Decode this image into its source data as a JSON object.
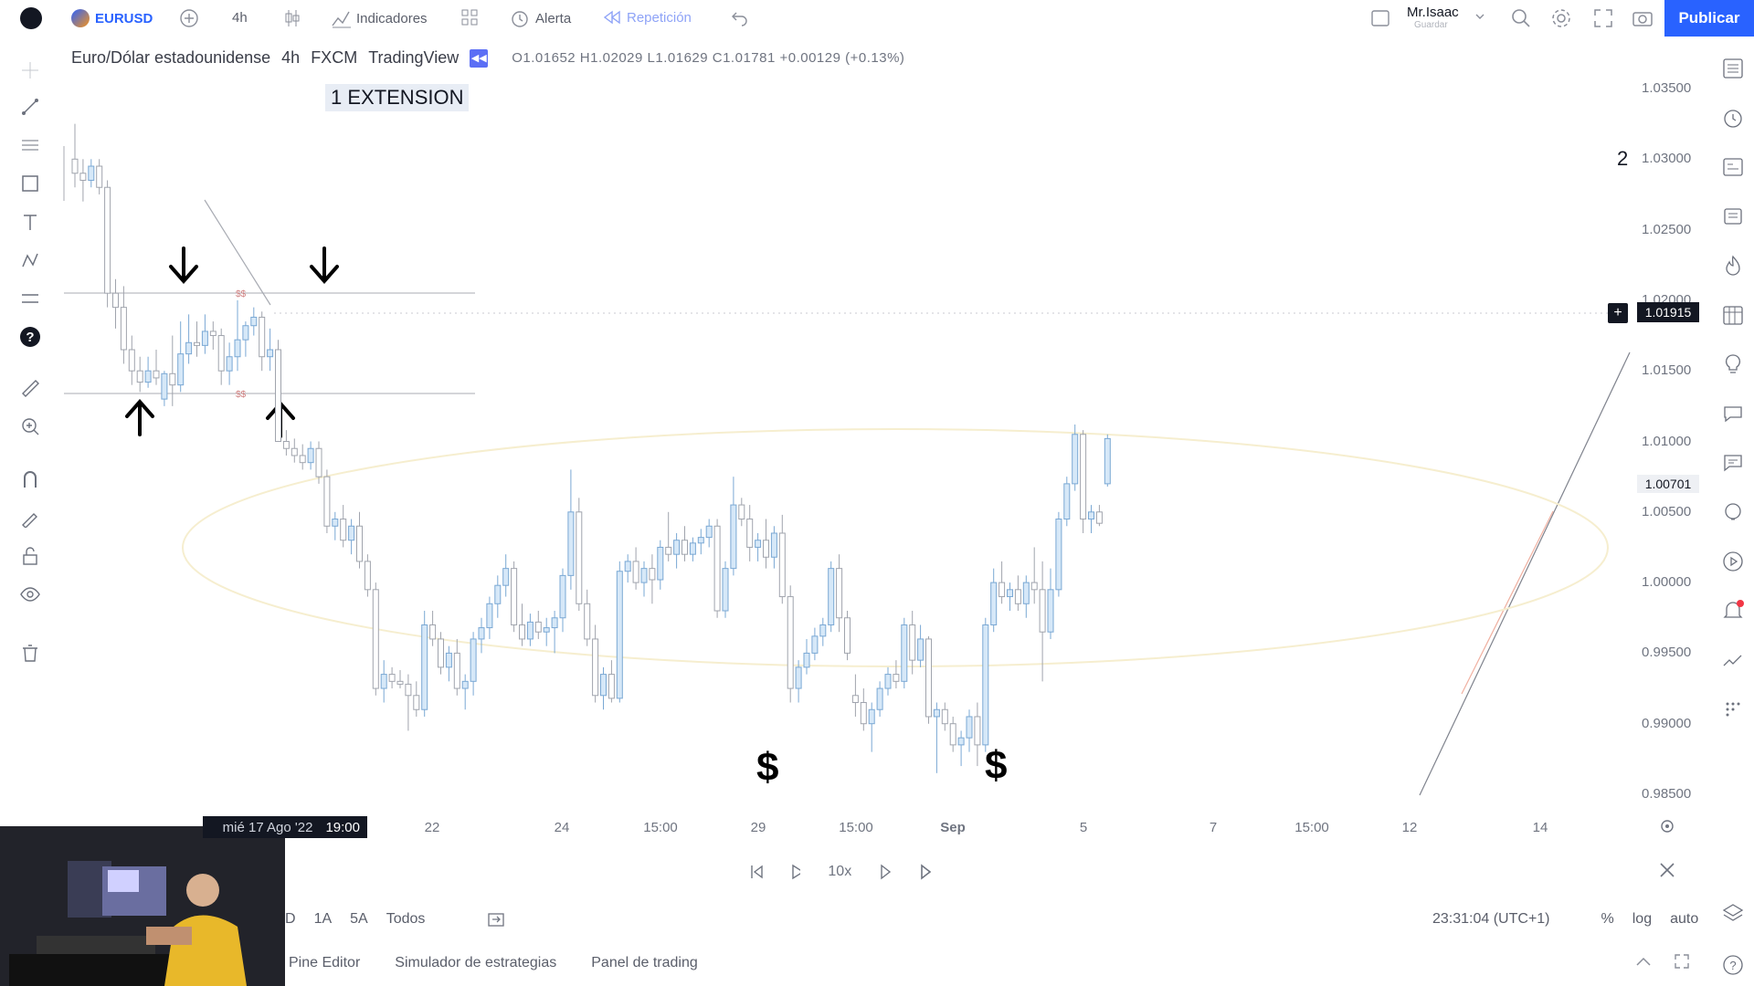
{
  "topbar": {
    "symbol": "EURUSD",
    "interval": "4h",
    "indicators_label": "Indicadores",
    "alert_label": "Alerta",
    "replay_label": "Repetición",
    "user_name": "Mr.Isaac",
    "user_sub": "Guardar",
    "publish_label": "Publicar"
  },
  "legend": {
    "title": "Euro/Dólar estadounidense",
    "interval": "4h",
    "exchange": "FXCM",
    "source": "TradingView",
    "ohlc": "O1.01652 H1.02029 L1.01629 C1.01781 +0.00129 (+0.13%)"
  },
  "annotation": {
    "extension_label": "1 EXTENSION",
    "marker_2": "2",
    "dollar_1": "$",
    "dollar_2": "$",
    "ss_top": "$$",
    "ss_bottom": "$$"
  },
  "chart_data": {
    "type": "candlestick",
    "price_ticks": [
      "1.03500",
      "1.03000",
      "1.02500",
      "1.02000",
      "1.01500",
      "1.01000",
      "1.00500",
      "1.00000",
      "0.99500",
      "0.99000",
      "0.98500"
    ],
    "ylim": [
      0.985,
      1.035
    ],
    "current_price": "1.01915",
    "marked_price": "1.00701",
    "time_ticks": [
      "22",
      "24",
      "15:00",
      "29",
      "15:00",
      "Sep",
      "5",
      "7",
      "15:00",
      "12",
      "14"
    ],
    "crosshair_date": "mié 17 Ago '22",
    "crosshair_time": "19:00",
    "candles": [
      {
        "o": 1.03,
        "h": 1.0325,
        "l": 1.028,
        "c": 1.029
      },
      {
        "o": 1.029,
        "h": 1.03,
        "l": 1.027,
        "c": 1.0285
      },
      {
        "o": 1.0285,
        "h": 1.03,
        "l": 1.028,
        "c": 1.0295
      },
      {
        "o": 1.0295,
        "h": 1.03,
        "l": 1.0275,
        "c": 1.028
      },
      {
        "o": 1.028,
        "h": 1.0285,
        "l": 1.0195,
        "c": 1.0205
      },
      {
        "o": 1.0205,
        "h": 1.0215,
        "l": 1.018,
        "c": 1.0195
      },
      {
        "o": 1.0195,
        "h": 1.021,
        "l": 1.0155,
        "c": 1.0165
      },
      {
        "o": 1.0165,
        "h": 1.0175,
        "l": 1.014,
        "c": 1.015
      },
      {
        "o": 1.015,
        "h": 1.016,
        "l": 1.0135,
        "c": 1.0142
      },
      {
        "o": 1.0142,
        "h": 1.016,
        "l": 1.0138,
        "c": 1.015
      },
      {
        "o": 1.015,
        "h": 1.0165,
        "l": 1.014,
        "c": 1.0145
      },
      {
        "o": 1.013,
        "h": 1.015,
        "l": 1.0125,
        "c": 1.0148
      },
      {
        "o": 1.0148,
        "h": 1.0175,
        "l": 1.0125,
        "c": 1.014
      },
      {
        "o": 1.014,
        "h": 1.0185,
        "l": 1.0135,
        "c": 1.0162
      },
      {
        "o": 1.0162,
        "h": 1.019,
        "l": 1.0155,
        "c": 1.017
      },
      {
        "o": 1.017,
        "h": 1.0185,
        "l": 1.016,
        "c": 1.0168
      },
      {
        "o": 1.0168,
        "h": 1.019,
        "l": 1.0162,
        "c": 1.0178
      },
      {
        "o": 1.0178,
        "h": 1.0185,
        "l": 1.0165,
        "c": 1.0175
      },
      {
        "o": 1.0175,
        "h": 1.018,
        "l": 1.014,
        "c": 1.015
      },
      {
        "o": 1.015,
        "h": 1.017,
        "l": 1.014,
        "c": 1.016
      },
      {
        "o": 1.016,
        "h": 1.02,
        "l": 1.015,
        "c": 1.0172
      },
      {
        "o": 1.0172,
        "h": 1.0185,
        "l": 1.016,
        "c": 1.0182
      },
      {
        "o": 1.0182,
        "h": 1.0195,
        "l": 1.0175,
        "c": 1.0188
      },
      {
        "o": 1.0188,
        "h": 1.0192,
        "l": 1.015,
        "c": 1.016
      },
      {
        "o": 1.016,
        "h": 1.018,
        "l": 1.015,
        "c": 1.0165
      },
      {
        "o": 1.0165,
        "h": 1.0172,
        "l": 1.01,
        "c": 1.01
      },
      {
        "o": 1.01,
        "h": 1.0108,
        "l": 1.009,
        "c": 1.0095
      },
      {
        "o": 1.0095,
        "h": 1.0102,
        "l": 1.0085,
        "c": 1.009
      },
      {
        "o": 1.009,
        "h": 1.0098,
        "l": 1.008,
        "c": 1.0085
      },
      {
        "o": 1.0085,
        "h": 1.01,
        "l": 1.008,
        "c": 1.0095
      },
      {
        "o": 1.0095,
        "h": 1.01,
        "l": 1.007,
        "c": 1.0075
      },
      {
        "o": 1.0075,
        "h": 1.008,
        "l": 1.0035,
        "c": 1.004
      },
      {
        "o": 1.004,
        "h": 1.005,
        "l": 1.003,
        "c": 1.0045
      },
      {
        "o": 1.0045,
        "h": 1.0055,
        "l": 1.0025,
        "c": 1.003
      },
      {
        "o": 1.003,
        "h": 1.0045,
        "l": 1.002,
        "c": 1.004
      },
      {
        "o": 1.004,
        "h": 1.005,
        "l": 1.001,
        "c": 1.0015
      },
      {
        "o": 1.0015,
        "h": 1.002,
        "l": 0.999,
        "c": 0.9995
      },
      {
        "o": 0.9995,
        "h": 1.0,
        "l": 0.992,
        "c": 0.9925
      },
      {
        "o": 0.9925,
        "h": 0.9945,
        "l": 0.9915,
        "c": 0.9935
      },
      {
        "o": 0.9935,
        "h": 0.994,
        "l": 0.9925,
        "c": 0.993
      },
      {
        "o": 0.993,
        "h": 0.9938,
        "l": 0.9925,
        "c": 0.9928
      },
      {
        "o": 0.9928,
        "h": 0.9935,
        "l": 0.9895,
        "c": 0.992
      },
      {
        "o": 0.992,
        "h": 0.993,
        "l": 0.9905,
        "c": 0.991
      },
      {
        "o": 0.991,
        "h": 0.998,
        "l": 0.9905,
        "c": 0.997
      },
      {
        "o": 0.997,
        "h": 0.998,
        "l": 0.9955,
        "c": 0.996
      },
      {
        "o": 0.996,
        "h": 0.9965,
        "l": 0.9935,
        "c": 0.994
      },
      {
        "o": 0.994,
        "h": 0.9955,
        "l": 0.993,
        "c": 0.995
      },
      {
        "o": 0.995,
        "h": 0.996,
        "l": 0.992,
        "c": 0.9925
      },
      {
        "o": 0.9925,
        "h": 0.9935,
        "l": 0.991,
        "c": 0.993
      },
      {
        "o": 0.993,
        "h": 0.9965,
        "l": 0.992,
        "c": 0.996
      },
      {
        "o": 0.996,
        "h": 0.9975,
        "l": 0.995,
        "c": 0.9968
      },
      {
        "o": 0.9968,
        "h": 0.999,
        "l": 0.996,
        "c": 0.9985
      },
      {
        "o": 0.9985,
        "h": 1.0005,
        "l": 0.9975,
        "c": 0.9998
      },
      {
        "o": 0.9998,
        "h": 1.002,
        "l": 0.999,
        "c": 1.001
      },
      {
        "o": 1.001,
        "h": 1.0015,
        "l": 0.9965,
        "c": 0.997
      },
      {
        "o": 0.997,
        "h": 0.9985,
        "l": 0.9955,
        "c": 0.996
      },
      {
        "o": 0.996,
        "h": 0.9978,
        "l": 0.9955,
        "c": 0.9972
      },
      {
        "o": 0.9972,
        "h": 0.998,
        "l": 0.996,
        "c": 0.9965
      },
      {
        "o": 0.9965,
        "h": 0.9975,
        "l": 0.9955,
        "c": 0.9968
      },
      {
        "o": 0.9968,
        "h": 0.998,
        "l": 0.995,
        "c": 0.9975
      },
      {
        "o": 0.9975,
        "h": 1.001,
        "l": 0.9965,
        "c": 1.0005
      },
      {
        "o": 1.0005,
        "h": 1.008,
        "l": 0.9995,
        "c": 1.005
      },
      {
        "o": 1.005,
        "h": 1.006,
        "l": 0.998,
        "c": 0.9985
      },
      {
        "o": 0.9985,
        "h": 0.9995,
        "l": 0.9955,
        "c": 0.996
      },
      {
        "o": 0.996,
        "h": 0.997,
        "l": 0.9915,
        "c": 0.992
      },
      {
        "o": 0.992,
        "h": 0.994,
        "l": 0.991,
        "c": 0.9935
      },
      {
        "o": 0.9935,
        "h": 0.9945,
        "l": 0.9915,
        "c": 0.9918
      },
      {
        "o": 0.9918,
        "h": 1.0015,
        "l": 0.9915,
        "c": 1.0008
      },
      {
        "o": 1.0008,
        "h": 1.002,
        "l": 1.0,
        "c": 1.0015
      },
      {
        "o": 1.0015,
        "h": 1.0025,
        "l": 0.9995,
        "c": 1.0
      },
      {
        "o": 1.0,
        "h": 1.0015,
        "l": 0.999,
        "c": 1.001
      },
      {
        "o": 1.001,
        "h": 1.002,
        "l": 0.9985,
        "c": 1.0002
      },
      {
        "o": 1.0002,
        "h": 1.003,
        "l": 0.9995,
        "c": 1.0025
      },
      {
        "o": 1.0025,
        "h": 1.005,
        "l": 1.0015,
        "c": 1.002
      },
      {
        "o": 1.002,
        "h": 1.0035,
        "l": 1.001,
        "c": 1.003
      },
      {
        "o": 1.003,
        "h": 1.004,
        "l": 1.0015,
        "c": 1.002
      },
      {
        "o": 1.002,
        "h": 1.0032,
        "l": 1.0015,
        "c": 1.0028
      },
      {
        "o": 1.0028,
        "h": 1.0038,
        "l": 1.002,
        "c": 1.0032
      },
      {
        "o": 1.0032,
        "h": 1.0045,
        "l": 1.0025,
        "c": 1.004
      },
      {
        "o": 1.004,
        "h": 1.0045,
        "l": 0.9975,
        "c": 0.998
      },
      {
        "o": 0.998,
        "h": 1.0015,
        "l": 0.9975,
        "c": 1.001
      },
      {
        "o": 1.001,
        "h": 1.0075,
        "l": 1.0005,
        "c": 1.0055
      },
      {
        "o": 1.0055,
        "h": 1.006,
        "l": 1.004,
        "c": 1.0045
      },
      {
        "o": 1.0045,
        "h": 1.0055,
        "l": 1.0015,
        "c": 1.0025
      },
      {
        "o": 1.0025,
        "h": 1.0035,
        "l": 1.0015,
        "c": 1.003
      },
      {
        "o": 1.003,
        "h": 1.0045,
        "l": 1.001,
        "c": 1.0018
      },
      {
        "o": 1.0018,
        "h": 1.004,
        "l": 1.001,
        "c": 1.0035
      },
      {
        "o": 1.0035,
        "h": 1.0048,
        "l": 0.9985,
        "c": 0.999
      },
      {
        "o": 0.999,
        "h": 0.9998,
        "l": 0.9915,
        "c": 0.9925
      },
      {
        "o": 0.9925,
        "h": 0.9945,
        "l": 0.9915,
        "c": 0.994
      },
      {
        "o": 0.994,
        "h": 0.996,
        "l": 0.9935,
        "c": 0.995
      },
      {
        "o": 0.995,
        "h": 0.9968,
        "l": 0.9945,
        "c": 0.9962
      },
      {
        "o": 0.9962,
        "h": 0.9975,
        "l": 0.9955,
        "c": 0.997
      },
      {
        "o": 0.997,
        "h": 1.0015,
        "l": 0.9965,
        "c": 1.001
      },
      {
        "o": 1.001,
        "h": 1.002,
        "l": 0.9965,
        "c": 0.9975
      },
      {
        "o": 0.9975,
        "h": 0.998,
        "l": 0.9945,
        "c": 0.995
      },
      {
        "o": 0.992,
        "h": 0.9935,
        "l": 0.9905,
        "c": 0.9915
      },
      {
        "o": 0.9915,
        "h": 0.9925,
        "l": 0.9895,
        "c": 0.99
      },
      {
        "o": 0.99,
        "h": 0.9915,
        "l": 0.988,
        "c": 0.991
      },
      {
        "o": 0.991,
        "h": 0.993,
        "l": 0.9905,
        "c": 0.9925
      },
      {
        "o": 0.9925,
        "h": 0.994,
        "l": 0.992,
        "c": 0.9935
      },
      {
        "o": 0.9935,
        "h": 0.9945,
        "l": 0.9925,
        "c": 0.993
      },
      {
        "o": 0.993,
        "h": 0.9975,
        "l": 0.9925,
        "c": 0.997
      },
      {
        "o": 0.997,
        "h": 0.998,
        "l": 0.9935,
        "c": 0.9945
      },
      {
        "o": 0.9945,
        "h": 0.997,
        "l": 0.994,
        "c": 0.996
      },
      {
        "o": 0.996,
        "h": 0.9962,
        "l": 0.99,
        "c": 0.9905
      },
      {
        "o": 0.9905,
        "h": 0.9915,
        "l": 0.9865,
        "c": 0.991
      },
      {
        "o": 0.991,
        "h": 0.9915,
        "l": 0.9895,
        "c": 0.99
      },
      {
        "o": 0.99,
        "h": 0.9905,
        "l": 0.988,
        "c": 0.9885
      },
      {
        "o": 0.9885,
        "h": 0.9895,
        "l": 0.987,
        "c": 0.989
      },
      {
        "o": 0.989,
        "h": 0.991,
        "l": 0.988,
        "c": 0.9905
      },
      {
        "o": 0.9905,
        "h": 0.9915,
        "l": 0.987,
        "c": 0.9885
      },
      {
        "o": 0.9885,
        "h": 0.9975,
        "l": 0.988,
        "c": 0.997
      },
      {
        "o": 0.997,
        "h": 1.001,
        "l": 0.9965,
        "c": 1.0
      },
      {
        "o": 1.0,
        "h": 1.0015,
        "l": 0.9985,
        "c": 0.999
      },
      {
        "o": 0.999,
        "h": 1.0,
        "l": 0.998,
        "c": 0.9995
      },
      {
        "o": 0.9995,
        "h": 1.0005,
        "l": 0.998,
        "c": 0.9985
      },
      {
        "o": 0.9985,
        "h": 1.0005,
        "l": 0.9975,
        "c": 1.0
      },
      {
        "o": 1.0,
        "h": 1.0025,
        "l": 0.9985,
        "c": 0.9995
      },
      {
        "o": 0.9995,
        "h": 1.0015,
        "l": 0.993,
        "c": 0.9965
      },
      {
        "o": 0.9965,
        "h": 1.001,
        "l": 0.996,
        "c": 0.9995
      },
      {
        "o": 0.9995,
        "h": 1.005,
        "l": 0.999,
        "c": 1.0045
      },
      {
        "o": 1.0045,
        "h": 1.0075,
        "l": 1.004,
        "c": 1.007
      },
      {
        "o": 1.007,
        "h": 1.0112,
        "l": 1.0065,
        "c": 1.0105
      },
      {
        "o": 1.0105,
        "h": 1.0108,
        "l": 1.0035,
        "c": 1.0045
      },
      {
        "o": 1.0045,
        "h": 1.0055,
        "l": 1.0035,
        "c": 1.005
      },
      {
        "o": 1.005,
        "h": 1.0055,
        "l": 1.004,
        "c": 1.0042
      },
      {
        "o": 1.007,
        "h": 1.0105,
        "l": 1.0068,
        "c": 1.0102
      }
    ]
  },
  "replay": {
    "speed": "10x"
  },
  "bottom": {
    "ranges": [
      "D",
      "1A",
      "5A",
      "Todos"
    ],
    "clock": "23:31:04 (UTC+1)",
    "percent": "%",
    "log": "log",
    "auto": "auto",
    "tabs": [
      "Pine Editor",
      "Simulador de estrategias",
      "Panel de trading"
    ]
  },
  "colors": {
    "bull_body": "#d6e8f8",
    "bull_border": "#7aa8d4",
    "bear_body": "#ffffff",
    "bear_border": "#a0a4ad",
    "accent": "#2962ff"
  }
}
